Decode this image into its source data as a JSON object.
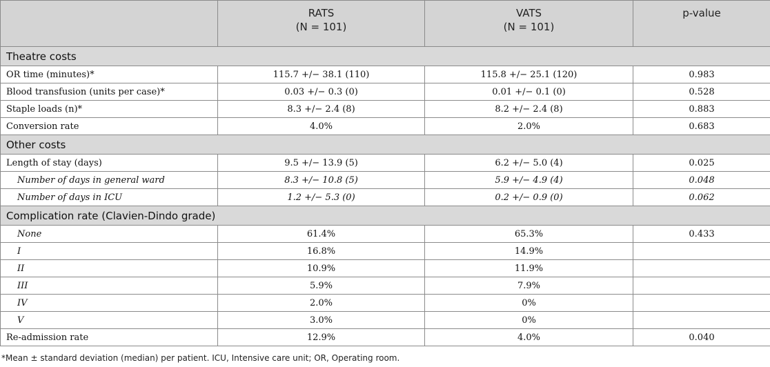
{
  "header": {
    "col1": "",
    "rats_label": "RATS",
    "rats_n": "(N = 101)",
    "vats_label": "VATS",
    "vats_n": "(N = 101)",
    "pvalue_label": "p-value"
  },
  "sections": {
    "theatre": "Theatre costs",
    "other": "Other costs",
    "complication": "Complication rate (Clavien-Dindo grade)"
  },
  "rows": {
    "or_time": [
      "OR time (minutes)*",
      "115.7 +/− 38.1 (110)",
      "115.8 +/− 25.1 (120)",
      "0.983"
    ],
    "blood": [
      "Blood transfusion (units per case)*",
      "0.03 +/− 0.3 (0)",
      "0.01 +/− 0.1 (0)",
      "0.528"
    ],
    "staple": [
      "Staple loads (n)*",
      "8.3 +/− 2.4 (8)",
      "8.2 +/− 2.4 (8)",
      "0.883"
    ],
    "conversion": [
      "Conversion rate",
      "4.0%",
      "2.0%",
      "0.683"
    ],
    "los": [
      "Length of stay (days)",
      "9.5 +/− 13.9 (5)",
      "6.2 +/− 5.0 (4)",
      "0.025"
    ],
    "ward": [
      "Number of days in general ward",
      "8.3 +/− 10.8 (5)",
      "5.9 +/− 4.9 (4)",
      "0.048"
    ],
    "icu": [
      "Number of days in ICU",
      "1.2 +/− 5.3 (0)",
      "0.2 +/− 0.9 (0)",
      "0.062"
    ],
    "none": [
      "None",
      "61.4%",
      "65.3%",
      "0.433"
    ],
    "g1": [
      "I",
      "16.8%",
      "14.9%",
      ""
    ],
    "g2": [
      "II",
      "10.9%",
      "11.9%",
      ""
    ],
    "g3": [
      "III",
      "5.9%",
      "7.9%",
      ""
    ],
    "g4": [
      "IV",
      "2.0%",
      "0%",
      ""
    ],
    "g5": [
      "V",
      "3.0%",
      "0%",
      ""
    ],
    "readmission": [
      "Re-admission rate",
      "12.9%",
      "4.0%",
      "0.040"
    ]
  },
  "footnote": "*Mean ± standard deviation (median) per patient. ICU, Intensive care unit; OR, Operating room."
}
